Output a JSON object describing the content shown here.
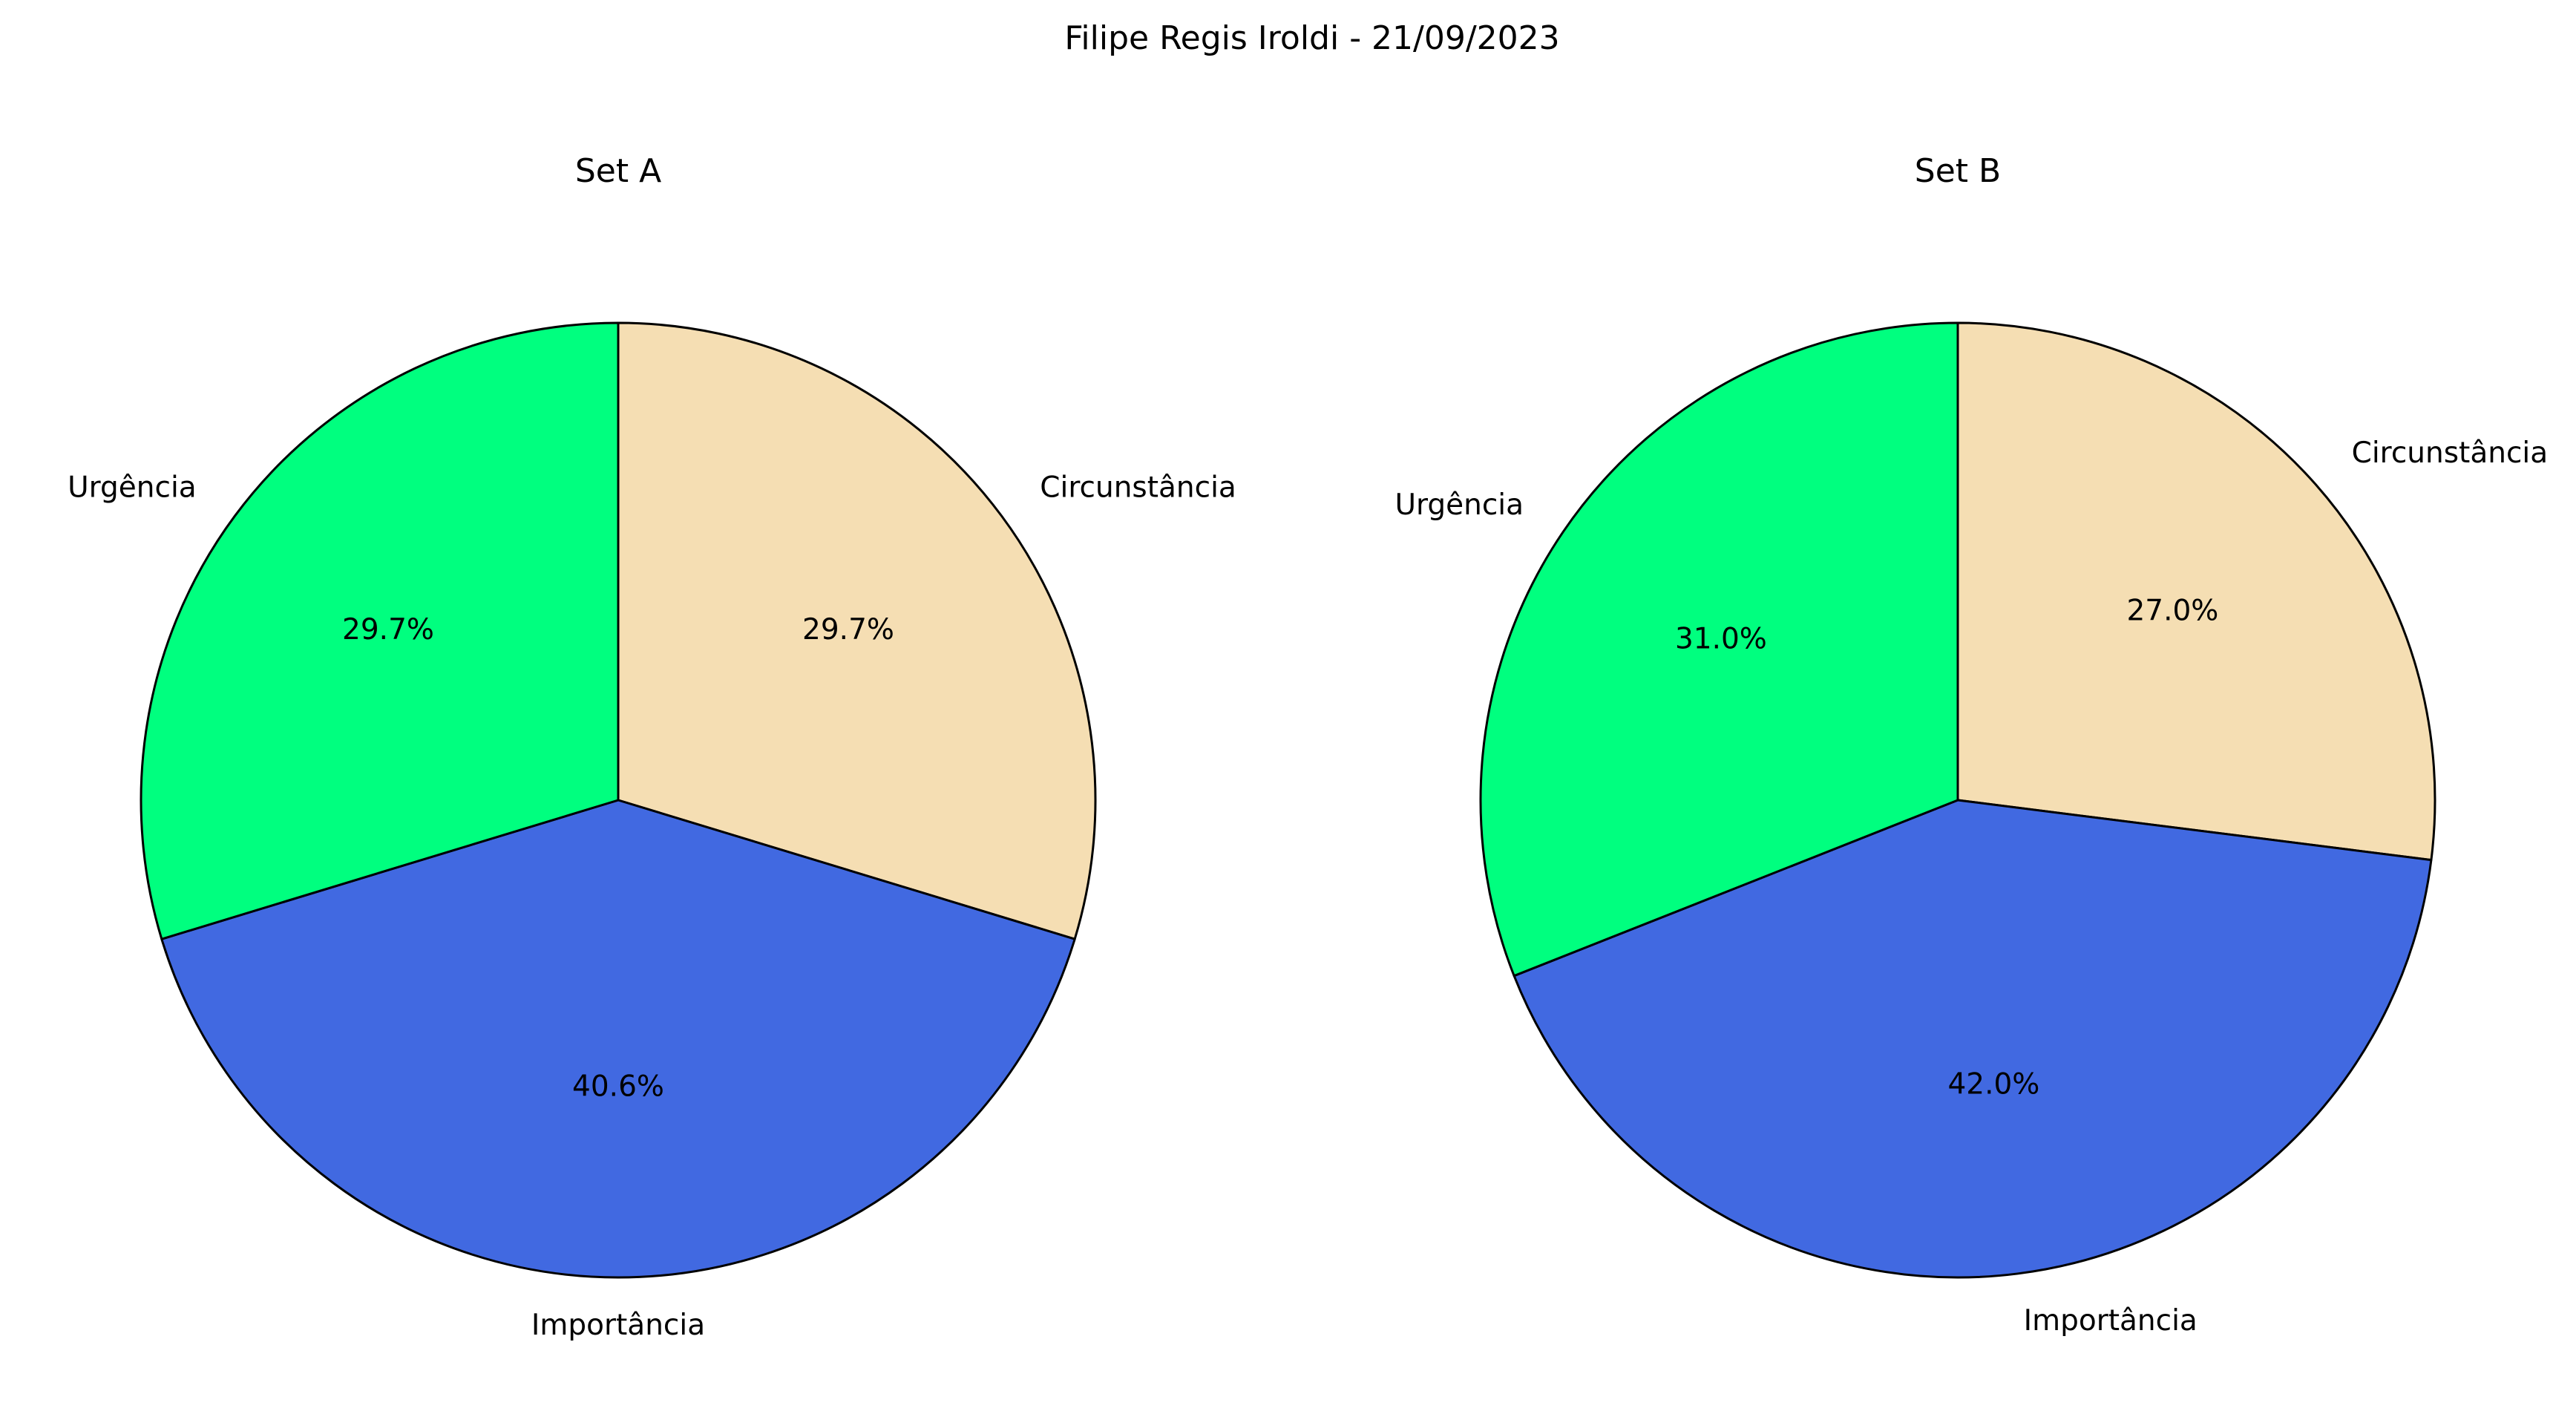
{
  "figure": {
    "title": "Filipe Regis Iroldi - 21/09/2023"
  },
  "chart_data": [
    {
      "type": "pie",
      "title": "Set A",
      "start_angle_deg": 90,
      "direction": "clockwise",
      "edge_color": "#000000",
      "labels": [
        "Circunstância",
        "Importância",
        "Urgência"
      ],
      "values": [
        29.7,
        40.6,
        29.7
      ],
      "percent_labels": [
        "29.7%",
        "40.6%",
        "29.7%"
      ],
      "colors": [
        "#f5deb3",
        "#4169e1",
        "#00ff7f"
      ]
    },
    {
      "type": "pie",
      "title": "Set B",
      "start_angle_deg": 90,
      "direction": "clockwise",
      "edge_color": "#000000",
      "labels": [
        "Circunstância",
        "Importância",
        "Urgência"
      ],
      "values": [
        27.0,
        42.0,
        31.0
      ],
      "percent_labels": [
        "27.0%",
        "42.0%",
        "31.0%"
      ],
      "colors": [
        "#f5deb3",
        "#4169e1",
        "#00ff7f"
      ]
    }
  ]
}
